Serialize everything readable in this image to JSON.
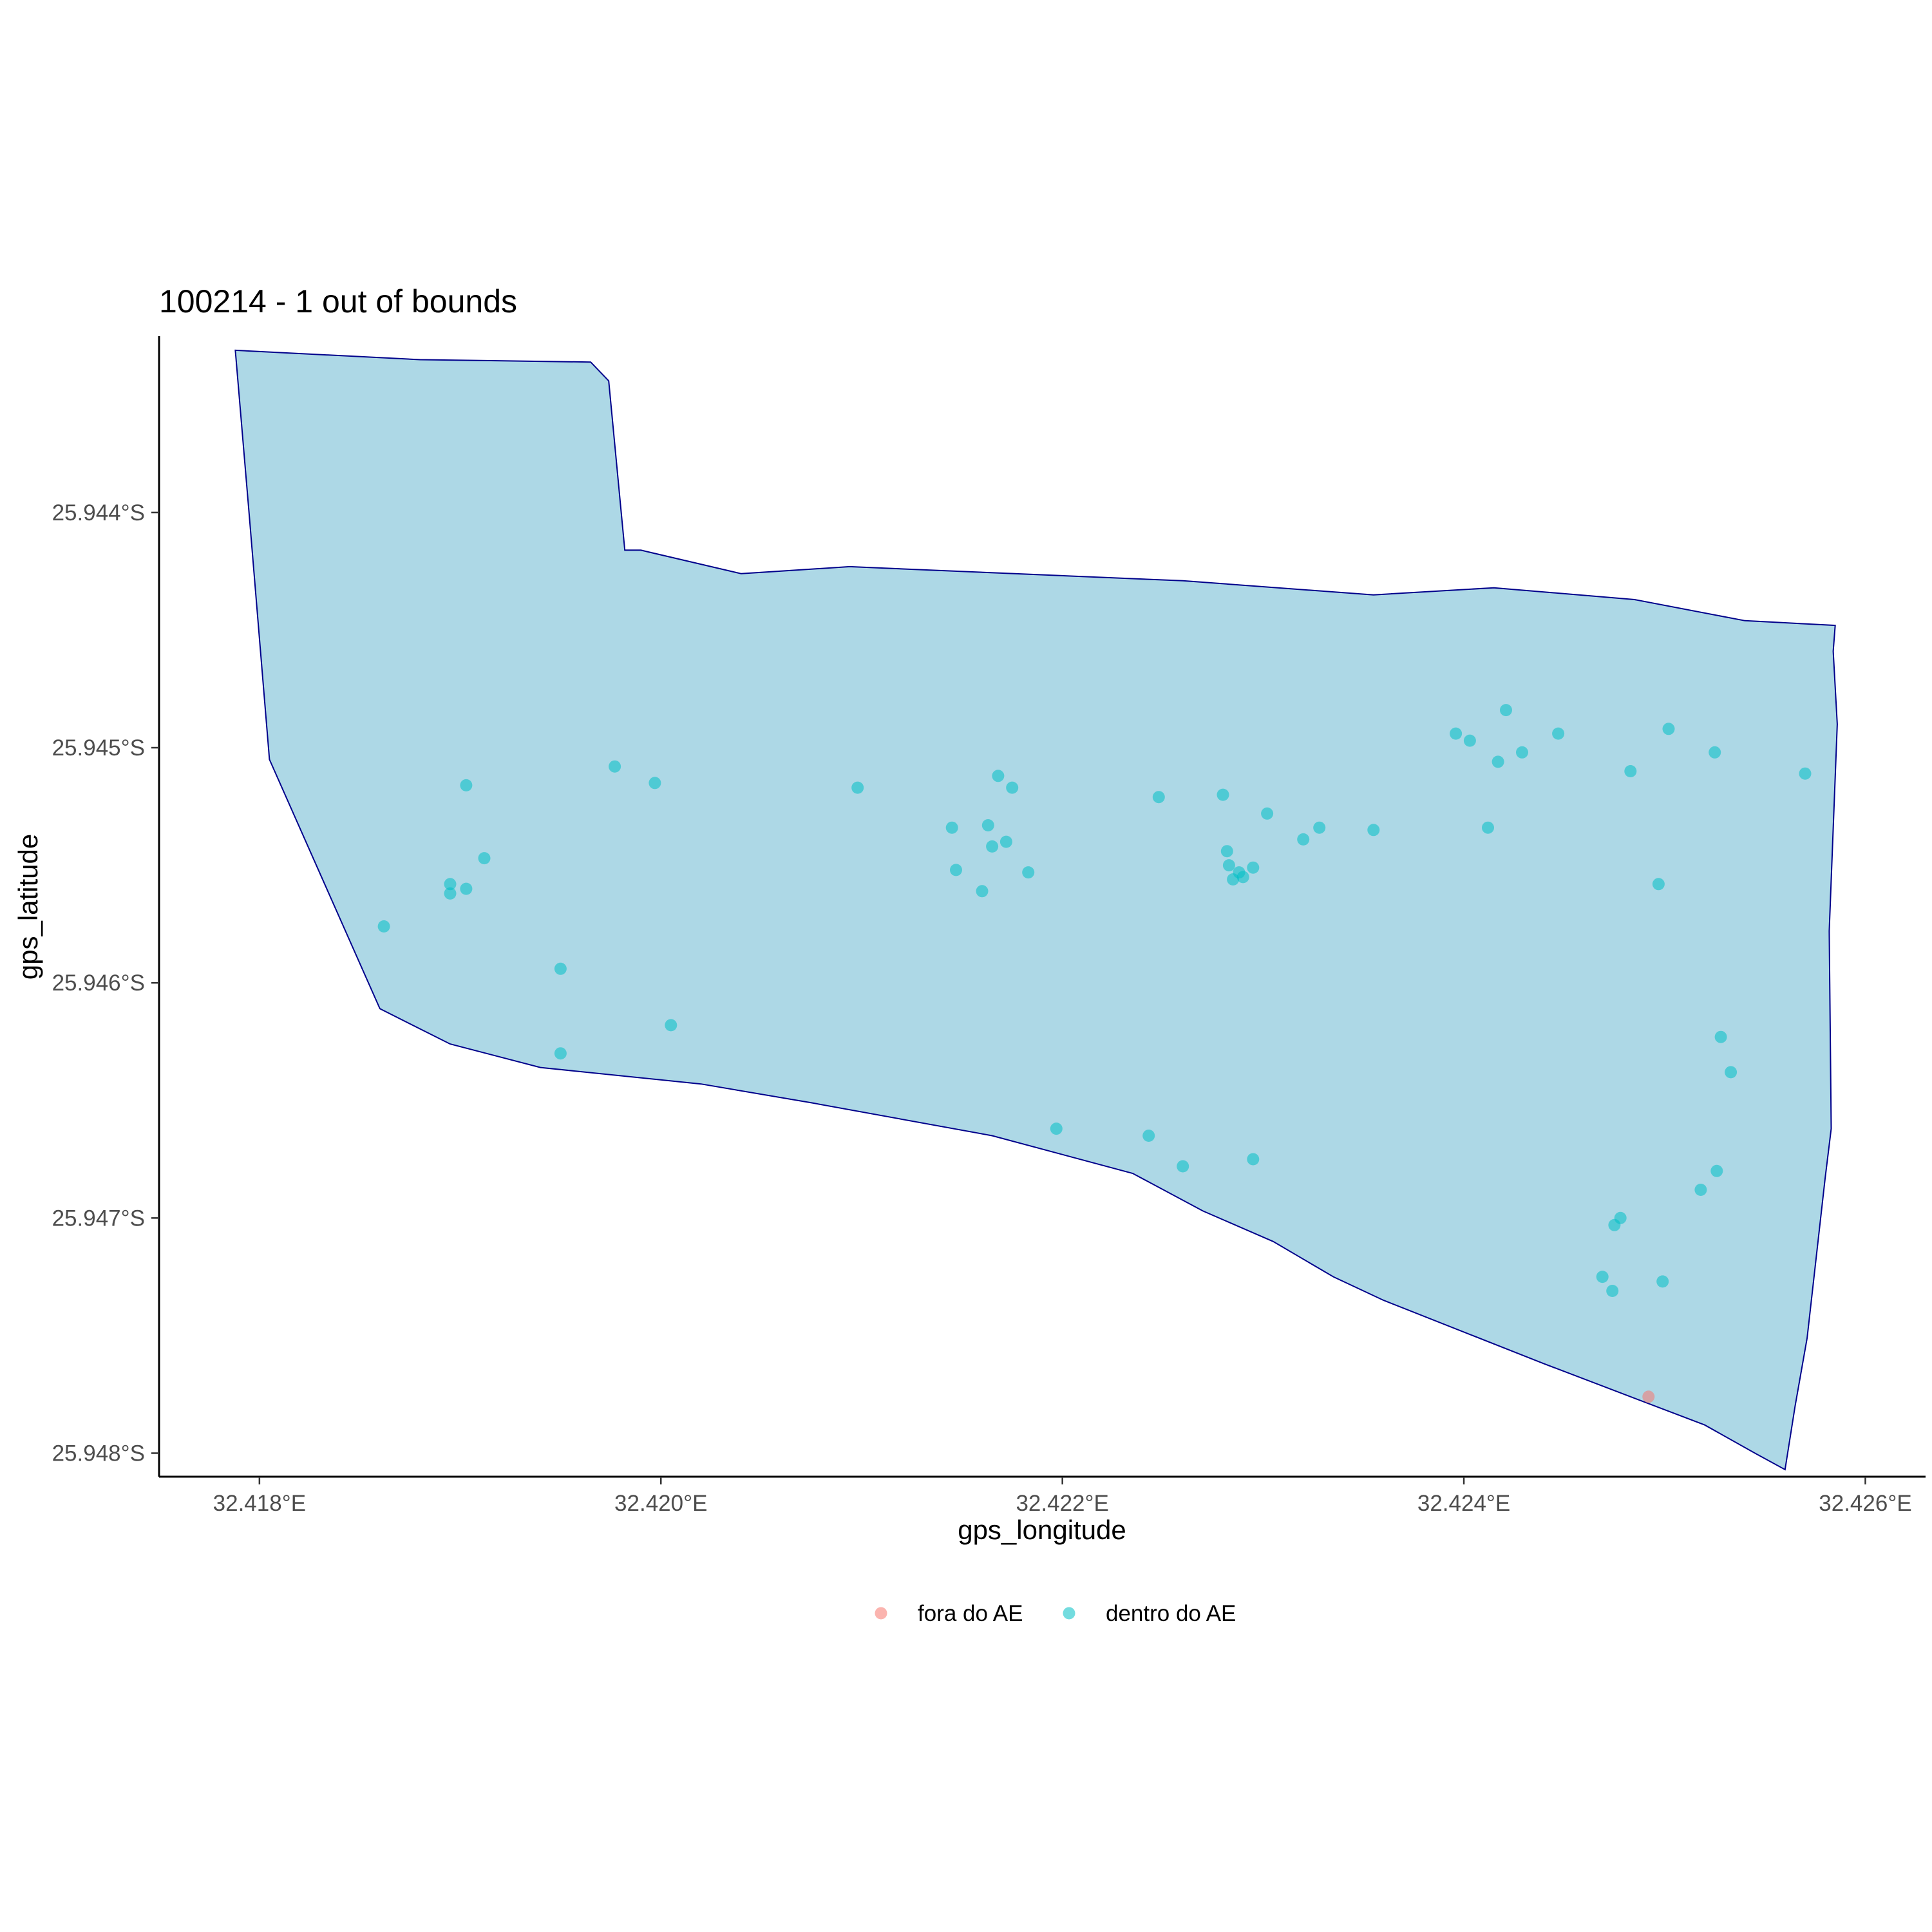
{
  "chart_data": {
    "type": "scatter",
    "title": "100214 - 1 out of bounds",
    "xlabel": "gps_longitude",
    "ylabel": "gps_latitude",
    "xlim": [
      32.4175,
      32.4263
    ],
    "ylim": [
      -25.9481,
      -25.94325
    ],
    "x_ticks": [
      {
        "value": 32.418,
        "label": "32.418°E"
      },
      {
        "value": 32.42,
        "label": "32.420°E"
      },
      {
        "value": 32.422,
        "label": "32.422°E"
      },
      {
        "value": 32.424,
        "label": "32.424°E"
      },
      {
        "value": 32.426,
        "label": "32.426°E"
      }
    ],
    "y_ticks": [
      {
        "value": -25.944,
        "label": "25.944°S"
      },
      {
        "value": -25.945,
        "label": "25.945°S"
      },
      {
        "value": -25.946,
        "label": "25.946°S"
      },
      {
        "value": -25.947,
        "label": "25.947°S"
      },
      {
        "value": -25.948,
        "label": "25.948°S"
      }
    ],
    "grid": false,
    "legend_position": "bottom",
    "area_polygon": {
      "fill": "#add8e6",
      "stroke": "#00008b",
      "points": [
        [
          32.41788,
          -25.94331
        ],
        [
          32.4188,
          -25.94335
        ],
        [
          32.41965,
          -25.94336
        ],
        [
          32.41974,
          -25.94344
        ],
        [
          32.41982,
          -25.94416
        ],
        [
          32.4199,
          -25.94416
        ],
        [
          32.4204,
          -25.94426
        ],
        [
          32.42094,
          -25.94423
        ],
        [
          32.4226,
          -25.94429
        ],
        [
          32.42355,
          -25.94435
        ],
        [
          32.42415,
          -25.94432
        ],
        [
          32.42485,
          -25.94437
        ],
        [
          32.4254,
          -25.94446
        ],
        [
          32.42585,
          -25.94448
        ],
        [
          32.42584,
          -25.94459
        ],
        [
          32.42586,
          -25.9449
        ],
        [
          32.42582,
          -25.94578
        ],
        [
          32.42583,
          -25.94662
        ],
        [
          32.4258,
          -25.94683
        ],
        [
          32.42571,
          -25.94751
        ],
        [
          32.42565,
          -25.9478
        ],
        [
          32.4256,
          -25.94807
        ],
        [
          32.42545,
          -25.948
        ],
        [
          32.4252,
          -25.94788
        ],
        [
          32.4244,
          -25.94762
        ],
        [
          32.4236,
          -25.94735
        ],
        [
          32.42335,
          -25.94725
        ],
        [
          32.42305,
          -25.9471
        ],
        [
          32.4227,
          -25.94697
        ],
        [
          32.42235,
          -25.94681
        ],
        [
          32.42165,
          -25.94665
        ],
        [
          32.42075,
          -25.94651
        ],
        [
          32.4202,
          -25.94643
        ],
        [
          32.4194,
          -25.94636
        ],
        [
          32.41895,
          -25.94626
        ],
        [
          32.4186,
          -25.94611
        ],
        [
          32.41805,
          -25.94505
        ],
        [
          32.41795,
          -25.94402
        ],
        [
          32.41788,
          -25.94331
        ]
      ]
    },
    "series": [
      {
        "name": "fora do AE",
        "color": "#f8766d",
        "points": [
          [
            32.42492,
            -25.94776
          ]
        ]
      },
      {
        "name": "dentro do AE",
        "color": "#00bfc4",
        "points": [
          [
            32.41862,
            -25.94576
          ],
          [
            32.41903,
            -25.94516
          ],
          [
            32.41895,
            -25.94562
          ],
          [
            32.41895,
            -25.94558
          ],
          [
            32.41903,
            -25.9456
          ],
          [
            32.41912,
            -25.94547
          ],
          [
            32.4195,
            -25.94594
          ],
          [
            32.4195,
            -25.9463
          ],
          [
            32.41977,
            -25.94508
          ],
          [
            32.41997,
            -25.94515
          ],
          [
            32.42005,
            -25.94618
          ],
          [
            32.42098,
            -25.94517
          ],
          [
            32.42145,
            -25.94534
          ],
          [
            32.42147,
            -25.94552
          ],
          [
            32.42163,
            -25.94533
          ],
          [
            32.42165,
            -25.94542
          ],
          [
            32.42168,
            -25.94512
          ],
          [
            32.42172,
            -25.9454
          ],
          [
            32.42175,
            -25.94517
          ],
          [
            32.4216,
            -25.94561
          ],
          [
            32.42183,
            -25.94553
          ],
          [
            32.42197,
            -25.94662
          ],
          [
            32.42243,
            -25.94665
          ],
          [
            32.42248,
            -25.94521
          ],
          [
            32.4226,
            -25.94678
          ],
          [
            32.4228,
            -25.9452
          ],
          [
            32.42282,
            -25.94544
          ],
          [
            32.42283,
            -25.9455
          ],
          [
            32.42285,
            -25.94556
          ],
          [
            32.42288,
            -25.94553
          ],
          [
            32.4229,
            -25.94555
          ],
          [
            32.42295,
            -25.94551
          ],
          [
            32.42295,
            -25.94675
          ],
          [
            32.42302,
            -25.94528
          ],
          [
            32.4232,
            -25.94539
          ],
          [
            32.42328,
            -25.94534
          ],
          [
            32.42355,
            -25.94535
          ],
          [
            32.42396,
            -25.94494
          ],
          [
            32.42403,
            -25.94497
          ],
          [
            32.42412,
            -25.94534
          ],
          [
            32.42417,
            -25.94506
          ],
          [
            32.42421,
            -25.94484
          ],
          [
            32.42429,
            -25.94502
          ],
          [
            32.42447,
            -25.94494
          ],
          [
            32.42469,
            -25.94725
          ],
          [
            32.42474,
            -25.94731
          ],
          [
            32.42475,
            -25.94703
          ],
          [
            32.42478,
            -25.947
          ],
          [
            32.42483,
            -25.9451
          ],
          [
            32.42497,
            -25.94558
          ],
          [
            32.42499,
            -25.94727
          ],
          [
            32.42502,
            -25.94492
          ],
          [
            32.42518,
            -25.94688
          ],
          [
            32.42525,
            -25.94502
          ],
          [
            32.42526,
            -25.9468
          ],
          [
            32.42528,
            -25.94623
          ],
          [
            32.42533,
            -25.94638
          ],
          [
            32.4257,
            -25.94511
          ]
        ]
      }
    ]
  }
}
